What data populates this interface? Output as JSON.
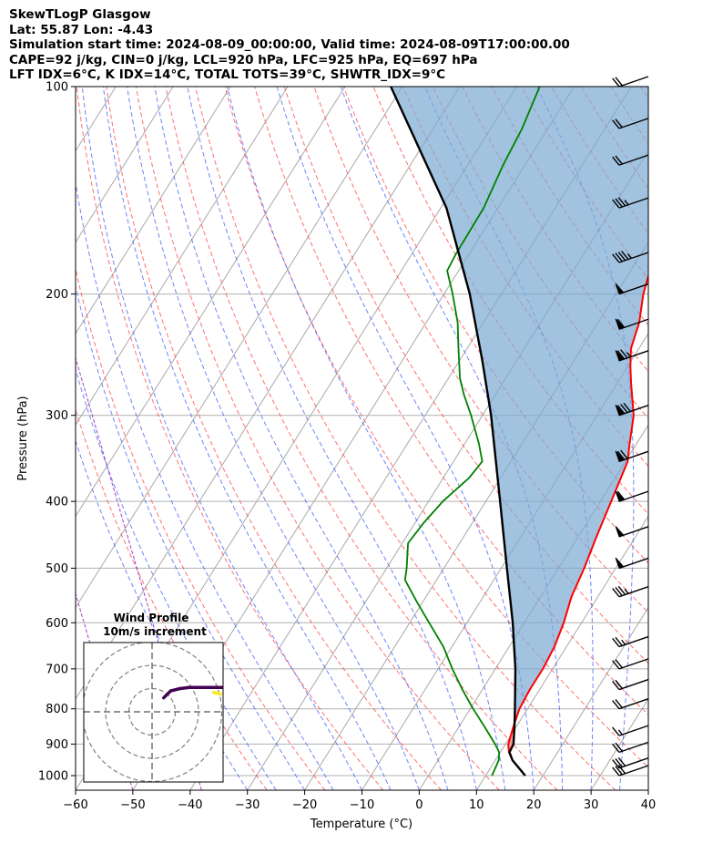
{
  "header": {
    "line1": "SkewTLogP Glasgow",
    "line2": "Lat: 55.87   Lon: -4.43",
    "line3": "Simulation start time: 2024-08-09_00:00:00, Valid time: 2024-08-09T17:00:00.00",
    "line4": "CAPE=92 j/kg, CIN=0 j/kg, LCL=920 hPa, LFC=925 hPa, EQ=697 hPa",
    "line5": "LFT IDX=6°C, K IDX=14°C, TOTAL TOTS=39°C, SHWTR_IDX=9°C"
  },
  "chart_data": {
    "type": "line",
    "xlabel": "Temperature (°C)",
    "ylabel": "Pressure (hPa)",
    "xlim": [
      -60,
      40
    ],
    "ylim": [
      1050,
      100
    ],
    "yscale": "log",
    "skew": true,
    "grid": true,
    "xticks": [
      -60,
      -50,
      -40,
      -30,
      -20,
      -10,
      0,
      10,
      20,
      30,
      40
    ],
    "xtick_labels": [
      "−60",
      "−50",
      "−40",
      "−30",
      "−20",
      "−10",
      "0",
      "10",
      "20",
      "30",
      "40"
    ],
    "yticks": [
      1000,
      900,
      800,
      700,
      600,
      500,
      400,
      300,
      200,
      100
    ],
    "ytick_labels": [
      "1000",
      "900",
      "800",
      "700",
      "600",
      "500",
      "400",
      "300",
      "200",
      "100"
    ],
    "series": [
      {
        "color": "#ff0000",
        "points": [
          [
            1000,
            16.9
          ],
          [
            950,
            13
          ],
          [
            925,
            11.5
          ],
          [
            900,
            10.5
          ],
          [
            850,
            9.5
          ],
          [
            800,
            8.6
          ],
          [
            750,
            8.3
          ],
          [
            700,
            8.3
          ],
          [
            650,
            7.9
          ],
          [
            600,
            6.9
          ],
          [
            550,
            5.4
          ],
          [
            500,
            4.5
          ],
          [
            450,
            3.2
          ],
          [
            400,
            1.9
          ],
          [
            350,
            0.4
          ],
          [
            330,
            -1.2
          ],
          [
            300,
            -3.6
          ],
          [
            270,
            -7.5
          ],
          [
            255,
            -9.5
          ],
          [
            240,
            -11.4
          ],
          [
            220,
            -12.8
          ],
          [
            200,
            -15.2
          ],
          [
            180,
            -17.1
          ],
          [
            165,
            -17.8
          ],
          [
            150,
            -18.5
          ],
          [
            130,
            -20.6
          ],
          [
            115,
            -23.6
          ],
          [
            100,
            -27
          ]
        ]
      },
      {
        "color": "#008000",
        "points": [
          [
            1000,
            11.1
          ],
          [
            950,
            10.6
          ],
          [
            925,
            9.8
          ],
          [
            900,
            8.2
          ],
          [
            850,
            4.5
          ],
          [
            800,
            0.5
          ],
          [
            750,
            -3.5
          ],
          [
            700,
            -7.5
          ],
          [
            650,
            -11.5
          ],
          [
            600,
            -16.6
          ],
          [
            560,
            -21
          ],
          [
            520,
            -25.5
          ],
          [
            500,
            -26.5
          ],
          [
            460,
            -29
          ],
          [
            430,
            -28.5
          ],
          [
            400,
            -27.5
          ],
          [
            370,
            -25.5
          ],
          [
            350,
            -25
          ],
          [
            330,
            -27.5
          ],
          [
            300,
            -32
          ],
          [
            280,
            -35.5
          ],
          [
            265,
            -38
          ],
          [
            240,
            -41.5
          ],
          [
            220,
            -44.5
          ],
          [
            200,
            -48.5
          ],
          [
            185,
            -52
          ],
          [
            175,
            -52.3
          ],
          [
            150,
            -52.5
          ],
          [
            130,
            -53.8
          ],
          [
            115,
            -54.5
          ],
          [
            100,
            -56
          ]
        ]
      },
      {
        "color": "#000000",
        "points": [
          [
            1000,
            16.9
          ],
          [
            950,
            13
          ],
          [
            925,
            11.6
          ],
          [
            900,
            11.4
          ],
          [
            850,
            9.7
          ],
          [
            800,
            7.8
          ],
          [
            700,
            3.5
          ],
          [
            600,
            -2
          ],
          [
            500,
            -9
          ],
          [
            400,
            -17.5
          ],
          [
            300,
            -28.5
          ],
          [
            250,
            -36
          ],
          [
            200,
            -45.5
          ],
          [
            150,
            -59
          ],
          [
            100,
            -82
          ]
        ]
      }
    ],
    "wind_barbs": [
      {
        "p": 1000,
        "flags": 0,
        "full": 3,
        "half": 0
      },
      {
        "p": 975,
        "flags": 0,
        "full": 3,
        "half": 0
      },
      {
        "p": 925,
        "flags": 0,
        "full": 2,
        "half": 0
      },
      {
        "p": 875,
        "flags": 0,
        "full": 1,
        "half": 1
      },
      {
        "p": 800,
        "flags": 0,
        "full": 2,
        "half": 0
      },
      {
        "p": 750,
        "flags": 0,
        "full": 2,
        "half": 0
      },
      {
        "p": 700,
        "flags": 0,
        "full": 2,
        "half": 0
      },
      {
        "p": 650,
        "flags": 0,
        "full": 2,
        "half": 1
      },
      {
        "p": 550,
        "flags": 0,
        "full": 3,
        "half": 1
      },
      {
        "p": 500,
        "flags": 1,
        "full": 0,
        "half": 0
      },
      {
        "p": 450,
        "flags": 1,
        "full": 0,
        "half": 0
      },
      {
        "p": 400,
        "flags": 1,
        "full": 1,
        "half": 0
      },
      {
        "p": 350,
        "flags": 1,
        "full": 2,
        "half": 0
      },
      {
        "p": 300,
        "flags": 1,
        "full": 3,
        "half": 0
      },
      {
        "p": 250,
        "flags": 1,
        "full": 2,
        "half": 1
      },
      {
        "p": 225,
        "flags": 1,
        "full": 1,
        "half": 0
      },
      {
        "p": 200,
        "flags": 1,
        "full": 0,
        "half": 0
      },
      {
        "p": 180,
        "flags": 0,
        "full": 4,
        "half": 1
      },
      {
        "p": 150,
        "flags": 0,
        "full": 3,
        "half": 1
      },
      {
        "p": 130,
        "flags": 0,
        "full": 2,
        "half": 0
      },
      {
        "p": 115,
        "flags": 0,
        "full": 2,
        "half": 0
      },
      {
        "p": 100,
        "flags": 0,
        "full": 2,
        "half": 0
      }
    ],
    "inset": {
      "title_line1": "Wind Profile",
      "title_line2": "10m/s increment",
      "type": "hodograph",
      "rings_ms": [
        10,
        20,
        30
      ],
      "hodograph": [
        [
          5,
          6
        ],
        [
          8,
          9
        ],
        [
          12,
          10
        ],
        [
          16,
          10.5
        ],
        [
          22,
          10.5
        ],
        [
          28,
          10.5
        ],
        [
          34,
          10.5
        ],
        [
          40,
          11
        ],
        [
          44,
          11
        ],
        [
          47,
          11
        ],
        [
          50,
          11.5
        ]
      ],
      "colors": [
        "#440154",
        "#3b528b",
        "#21918c",
        "#5ec962",
        "#fde725"
      ]
    }
  }
}
